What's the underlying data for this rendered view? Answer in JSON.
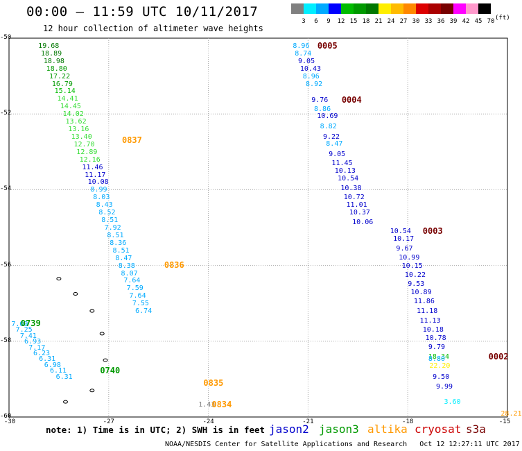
{
  "header": {
    "title": "00:00 – 11:59 UTC 10/11/2017",
    "subtitle": "12 hour collection of altimeter wave heights"
  },
  "legend": {
    "colors": [
      "#808080",
      "#00eeff",
      "#00aaff",
      "#0000ff",
      "#00bb00",
      "#009900",
      "#007700",
      "#ffee00",
      "#ffbb00",
      "#ff8800",
      "#dd0000",
      "#aa0000",
      "#770000",
      "#ff00ff",
      "#ff99cc",
      "#000000"
    ],
    "labels": [
      "3",
      "6",
      "9",
      "12",
      "15",
      "18",
      "21",
      "24",
      "27",
      "30",
      "33",
      "36",
      "39",
      "42",
      "45",
      "70"
    ],
    "unit": "(ft)"
  },
  "axes": {
    "x_ticks": [
      "-30",
      "-27",
      "-24",
      "-21",
      "-18",
      "-15"
    ],
    "y_ticks": [
      "-50",
      "-52",
      "-54",
      "-56",
      "-58",
      "-60"
    ]
  },
  "satellites": [
    {
      "name": "jason2",
      "color": "#0000cc"
    },
    {
      "name": "jason3",
      "color": "#009900"
    },
    {
      "name": "altika",
      "color": "#ff9900"
    },
    {
      "name": "cryosat",
      "color": "#cc0000"
    },
    {
      "name": "s3a",
      "color": "#770000"
    }
  ],
  "note": "note: 1) Time is in UTC; 2) SWH is in feet",
  "credit": "NOAA/NESDIS Center for Satellite Applications and Research   Oct 12 12:27:11 UTC 2017",
  "chart_data": {
    "type": "scatter",
    "title": "00:00 – 11:59 UTC 10/11/2017",
    "subtitle": "12 hour collection of altimeter wave heights",
    "xlim": [
      -30,
      -15
    ],
    "ylim": [
      -60,
      -50
    ],
    "x_ticks": [
      -30,
      -27,
      -24,
      -21,
      -18,
      -15
    ],
    "y_ticks": [
      -50,
      -52,
      -54,
      -56,
      -58,
      -60
    ],
    "grid": true,
    "unit": "ft",
    "tracks": [
      {
        "pass": "0837",
        "pass_lon": -26.6,
        "pass_lat": -52.7,
        "pass_color": "#ff9900",
        "points": [
          {
            "lon": -29.12,
            "lat": -50.2,
            "v": "19.68",
            "color": "#007700"
          },
          {
            "lon": -29.04,
            "lat": -50.4,
            "v": "18.89",
            "color": "#007700"
          },
          {
            "lon": -28.96,
            "lat": -50.6,
            "v": "18.98",
            "color": "#007700"
          },
          {
            "lon": -28.88,
            "lat": -50.8,
            "v": "18.80",
            "color": "#009900"
          },
          {
            "lon": -28.79,
            "lat": -51.0,
            "v": "17.22",
            "color": "#009900"
          },
          {
            "lon": -28.71,
            "lat": -51.2,
            "v": "16.79",
            "color": "#009900"
          },
          {
            "lon": -28.63,
            "lat": -51.4,
            "v": "15.14",
            "color": "#00bb00"
          },
          {
            "lon": -28.55,
            "lat": -51.6,
            "v": "14.41",
            "color": "#33dd33"
          },
          {
            "lon": -28.46,
            "lat": -51.8,
            "v": "14.45",
            "color": "#33dd33"
          },
          {
            "lon": -28.38,
            "lat": -52.0,
            "v": "14.02",
            "color": "#33dd33"
          },
          {
            "lon": -28.3,
            "lat": -52.2,
            "v": "13.62",
            "color": "#33dd33"
          },
          {
            "lon": -28.22,
            "lat": -52.4,
            "v": "13.16",
            "color": "#33dd33"
          },
          {
            "lon": -28.13,
            "lat": -52.6,
            "v": "13.40",
            "color": "#33dd33"
          },
          {
            "lon": -28.05,
            "lat": -52.8,
            "v": "12.70",
            "color": "#33dd33"
          },
          {
            "lon": -27.97,
            "lat": -53.0,
            "v": "12.89",
            "color": "#33dd33"
          },
          {
            "lon": -27.88,
            "lat": -53.2,
            "v": "12.16",
            "color": "#33dd33"
          },
          {
            "lon": -27.8,
            "lat": -53.4,
            "v": "11.46",
            "color": "#0000cc"
          },
          {
            "lon": -27.72,
            "lat": -53.6,
            "v": "11.17",
            "color": "#0000cc"
          },
          {
            "lon": -27.63,
            "lat": -53.8,
            "v": "10.08",
            "color": "#0000cc"
          },
          {
            "lon": -27.55,
            "lat": -54.0,
            "v": "8.99",
            "color": "#00aaff"
          },
          {
            "lon": -27.47,
            "lat": -54.2,
            "v": "8.03",
            "color": "#00aaff"
          },
          {
            "lon": -27.38,
            "lat": -54.4,
            "v": "8.43",
            "color": "#00aaff"
          },
          {
            "lon": -27.3,
            "lat": -54.6,
            "v": "8.52",
            "color": "#00aaff"
          },
          {
            "lon": -27.22,
            "lat": -54.8,
            "v": "8.51",
            "color": "#00aaff"
          },
          {
            "lon": -27.13,
            "lat": -55.0,
            "v": "7.92",
            "color": "#00aaff"
          },
          {
            "lon": -27.05,
            "lat": -55.2,
            "v": "8.51",
            "color": "#00aaff"
          },
          {
            "lon": -26.97,
            "lat": -55.4,
            "v": "8.36",
            "color": "#00aaff"
          },
          {
            "lon": -26.88,
            "lat": -55.6,
            "v": "8.51",
            "color": "#00aaff"
          },
          {
            "lon": -26.8,
            "lat": -55.8,
            "v": "8.47",
            "color": "#00aaff"
          },
          {
            "lon": -26.71,
            "lat": -56.0,
            "v": "8.38",
            "color": "#00aaff"
          },
          {
            "lon": -26.63,
            "lat": -56.2,
            "v": "8.07",
            "color": "#00aaff"
          },
          {
            "lon": -26.55,
            "lat": -56.4,
            "v": "7.64",
            "color": "#00aaff"
          },
          {
            "lon": -26.46,
            "lat": -56.6,
            "v": "7.59",
            "color": "#00aaff"
          },
          {
            "lon": -26.38,
            "lat": -56.8,
            "v": "7.64",
            "color": "#00aaff"
          },
          {
            "lon": -26.29,
            "lat": -57.0,
            "v": "7.55",
            "color": "#00aaff"
          },
          {
            "lon": -26.2,
            "lat": -57.2,
            "v": "6.74",
            "color": "#00aaff"
          }
        ]
      },
      {
        "pass": "0836",
        "pass_lon": -25.33,
        "pass_lat": -55.98,
        "pass_color": "#ff9900",
        "points": []
      },
      {
        "pass": "0835",
        "pass_lon": -24.15,
        "pass_lat": -59.11,
        "pass_color": "#ff9900",
        "points": []
      },
      {
        "pass": "0834",
        "pass_lon": -23.9,
        "pass_lat": -59.67,
        "pass_color": "#ff9900",
        "points": [
          {
            "lon": -24.3,
            "lat": -59.67,
            "v": "1.43",
            "color": "#808080"
          }
        ]
      },
      {
        "pass": "0739",
        "pass_lon": -29.65,
        "pass_lat": -57.52,
        "pass_color": "#009900",
        "points": [
          {
            "lon": -29.93,
            "lat": -57.55,
            "v": "7.09",
            "color": "#00aaff"
          },
          {
            "lon": -29.8,
            "lat": -57.69,
            "v": "7.25",
            "color": "#00aaff"
          },
          {
            "lon": -29.67,
            "lat": -57.85,
            "v": "7.41",
            "color": "#00aaff"
          },
          {
            "lon": -29.54,
            "lat": -58.0,
            "v": "6.93",
            "color": "#00aaff"
          },
          {
            "lon": -29.41,
            "lat": -58.16,
            "v": "7.17",
            "color": "#00aaff"
          },
          {
            "lon": -29.27,
            "lat": -58.31,
            "v": "6.23",
            "color": "#00aaff"
          },
          {
            "lon": -29.1,
            "lat": -58.47,
            "v": "6.31",
            "color": "#00aaff"
          },
          {
            "lon": -28.94,
            "lat": -58.62,
            "v": "6.98",
            "color": "#00aaff"
          },
          {
            "lon": -28.77,
            "lat": -58.77,
            "v": "6.11",
            "color": "#00aaff"
          },
          {
            "lon": -28.59,
            "lat": -58.93,
            "v": "6.31",
            "color": "#00aaff"
          }
        ]
      },
      {
        "pass": "0740",
        "pass_lon": -27.26,
        "pass_lat": -58.77,
        "pass_color": "#009900",
        "points": []
      },
      {
        "pass": "0005",
        "pass_lon": -20.72,
        "pass_lat": -50.2,
        "pass_color": "#770000",
        "points": [
          {
            "lon": -21.46,
            "lat": -50.2,
            "v": "8.96",
            "color": "#00aaff"
          },
          {
            "lon": -21.4,
            "lat": -50.4,
            "v": "8.74",
            "color": "#00aaff"
          },
          {
            "lon": -21.3,
            "lat": -50.6,
            "v": "9.05",
            "color": "#0000cc"
          },
          {
            "lon": -21.24,
            "lat": -50.8,
            "v": "10.43",
            "color": "#0000cc"
          },
          {
            "lon": -21.16,
            "lat": -51.0,
            "v": "8.96",
            "color": "#00aaff"
          },
          {
            "lon": -21.07,
            "lat": -51.2,
            "v": "8.92",
            "color": "#00aaff"
          }
        ]
      },
      {
        "pass": "0004",
        "pass_lon": -19.99,
        "pass_lat": -51.63,
        "pass_color": "#770000",
        "points": [
          {
            "lon": -20.9,
            "lat": -51.63,
            "v": "9.76",
            "color": "#0000cc"
          },
          {
            "lon": -20.82,
            "lat": -51.87,
            "v": "8.86",
            "color": "#00aaff"
          },
          {
            "lon": -20.73,
            "lat": -52.05,
            "v": "10.69",
            "color": "#0000cc"
          },
          {
            "lon": -20.64,
            "lat": -52.33,
            "v": "8.82",
            "color": "#00aaff"
          },
          {
            "lon": -20.55,
            "lat": -52.6,
            "v": "9.22",
            "color": "#0000cc"
          },
          {
            "lon": -20.46,
            "lat": -52.78,
            "v": "8.47",
            "color": "#00aaff"
          },
          {
            "lon": -20.38,
            "lat": -53.05,
            "v": "9.05",
            "color": "#0000cc"
          },
          {
            "lon": -20.29,
            "lat": -53.3,
            "v": "11.45",
            "color": "#0000cc"
          },
          {
            "lon": -20.2,
            "lat": -53.5,
            "v": "10.13",
            "color": "#0000cc"
          },
          {
            "lon": -20.11,
            "lat": -53.7,
            "v": "10.54",
            "color": "#0000cc"
          },
          {
            "lon": -20.02,
            "lat": -53.95,
            "v": "10.38",
            "color": "#0000cc"
          },
          {
            "lon": -19.93,
            "lat": -54.2,
            "v": "10.72",
            "color": "#0000cc"
          },
          {
            "lon": -19.85,
            "lat": -54.4,
            "v": "11.01",
            "color": "#0000cc"
          },
          {
            "lon": -19.76,
            "lat": -54.6,
            "v": "10.37",
            "color": "#0000cc"
          },
          {
            "lon": -19.67,
            "lat": -54.85,
            "v": "10.06",
            "color": "#0000cc"
          }
        ]
      },
      {
        "pass": "0003",
        "pass_lon": -17.55,
        "pass_lat": -55.1,
        "pass_color": "#770000",
        "points": [
          {
            "lon": -18.53,
            "lat": -55.1,
            "v": "10.54",
            "color": "#0000cc"
          },
          {
            "lon": -18.44,
            "lat": -55.3,
            "v": "10.17",
            "color": "#0000cc"
          },
          {
            "lon": -18.35,
            "lat": -55.55,
            "v": "9.67",
            "color": "#0000cc"
          },
          {
            "lon": -18.27,
            "lat": -55.78,
            "v": "10.99",
            "color": "#0000cc"
          },
          {
            "lon": -18.18,
            "lat": -56.0,
            "v": "10.15",
            "color": "#0000cc"
          },
          {
            "lon": -18.09,
            "lat": -56.25,
            "v": "10.22",
            "color": "#0000cc"
          },
          {
            "lon": -18.0,
            "lat": -56.48,
            "v": "9.53",
            "color": "#0000cc"
          },
          {
            "lon": -17.91,
            "lat": -56.7,
            "v": "10.89",
            "color": "#0000cc"
          },
          {
            "lon": -17.82,
            "lat": -56.95,
            "v": "11.86",
            "color": "#0000cc"
          },
          {
            "lon": -17.73,
            "lat": -57.2,
            "v": "11.18",
            "color": "#0000cc"
          },
          {
            "lon": -17.64,
            "lat": -57.45,
            "v": "11.13",
            "color": "#0000cc"
          },
          {
            "lon": -17.55,
            "lat": -57.7,
            "v": "10.18",
            "color": "#0000cc"
          },
          {
            "lon": -17.47,
            "lat": -57.92,
            "v": "10.78",
            "color": "#0000cc"
          },
          {
            "lon": -17.38,
            "lat": -58.15,
            "v": "9.79",
            "color": "#0000cc"
          }
        ]
      },
      {
        "pass": "0002",
        "pass_lon": -15.57,
        "pass_lat": -58.4,
        "pass_color": "#770000",
        "points": [
          {
            "lon": -17.38,
            "lat": -58.4,
            "v": "18.34",
            "color": "#00bb00"
          },
          {
            "lon": -17.38,
            "lat": -58.47,
            "v": "8.80",
            "color": "#00aaff"
          },
          {
            "lon": -17.35,
            "lat": -58.65,
            "v": "22.20",
            "color": "#ffee00"
          },
          {
            "lon": -17.25,
            "lat": -58.93,
            "v": "9.50",
            "color": "#0000cc"
          },
          {
            "lon": -17.15,
            "lat": -59.2,
            "v": "9.99",
            "color": "#0000cc"
          },
          {
            "lon": -16.91,
            "lat": -59.6,
            "v": "3.60",
            "color": "#00eeff"
          },
          {
            "lon": -15.2,
            "lat": -59.9,
            "v": "28.21",
            "color": "#ff9900"
          }
        ]
      }
    ],
    "islands": [
      {
        "lon": -28.5,
        "lat": -56.35
      },
      {
        "lon": -28.0,
        "lat": -56.75
      },
      {
        "lon": -27.5,
        "lat": -57.2
      },
      {
        "lon": -27.2,
        "lat": -57.8
      },
      {
        "lon": -27.1,
        "lat": -58.5
      },
      {
        "lon": -27.5,
        "lat": -59.3
      },
      {
        "lon": -28.3,
        "lat": -59.6
      }
    ]
  }
}
